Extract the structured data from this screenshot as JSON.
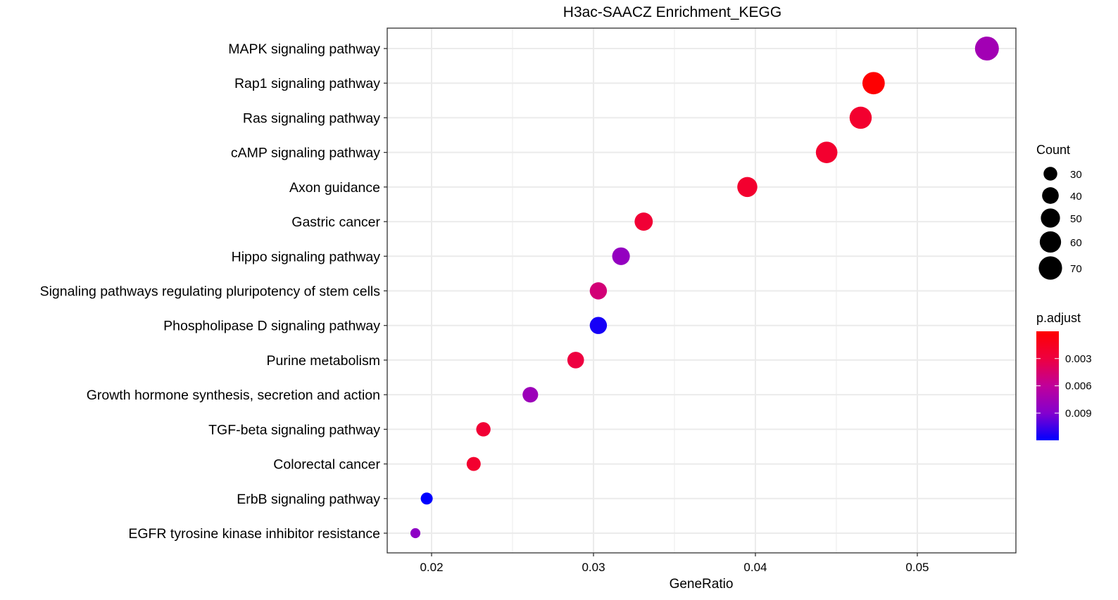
{
  "chart_data": {
    "type": "scatter",
    "title": "H3ac-SAACZ Enrichment_KEGG",
    "xlabel": "GeneRatio",
    "ylabel": "",
    "xlim": [
      0.01726,
      0.05609
    ],
    "x_ticks": [
      0.02,
      0.03,
      0.04,
      0.05
    ],
    "x_tick_labels": [
      "0.02",
      "0.03",
      "0.04",
      "0.05"
    ],
    "grid": true,
    "categories": [
      "MAPK signaling pathway",
      "Rap1 signaling pathway",
      "Ras signaling pathway",
      "cAMP signaling pathway",
      "Axon guidance",
      "Gastric cancer",
      "Hippo signaling pathway",
      "Signaling pathways regulating pluripotency of stem cells",
      "Phospholipase D signaling pathway",
      "Purine metabolism",
      "Growth hormone synthesis, secretion and action",
      "TGF-beta signaling pathway",
      "Colorectal cancer",
      "ErbB signaling pathway",
      "EGFR tyrosine kinase inhibitor resistance"
    ],
    "gene_ratio": [
      0.0543,
      0.0473,
      0.0465,
      0.0444,
      0.0395,
      0.0331,
      0.0317,
      0.0303,
      0.0303,
      0.0289,
      0.0261,
      0.0232,
      0.0226,
      0.0197,
      0.019
    ],
    "count": [
      73,
      65,
      64,
      61,
      54,
      46,
      44,
      42,
      42,
      40,
      36,
      32,
      31,
      25,
      20
    ],
    "p_adjust": [
      0.0075,
      0.0001,
      0.0022,
      0.0022,
      0.0022,
      0.0025,
      0.0082,
      0.0048,
      0.0115,
      0.003,
      0.0078,
      0.0025,
      0.0022,
      0.012,
      0.0085
    ],
    "size_legend": {
      "title": "Count",
      "values": [
        30,
        40,
        50,
        60,
        70
      ],
      "labels": [
        "30",
        "40",
        "50",
        "60",
        "70"
      ],
      "placement": "right"
    },
    "color_legend": {
      "title": "p.adjust",
      "range": [
        0.0,
        0.012
      ],
      "ticks": [
        0.003,
        0.006,
        0.009
      ],
      "tick_labels": [
        "0.003",
        "0.006",
        "0.009"
      ],
      "low_color": "#FF0000",
      "high_color": "#0000FF",
      "placement": "right"
    }
  }
}
